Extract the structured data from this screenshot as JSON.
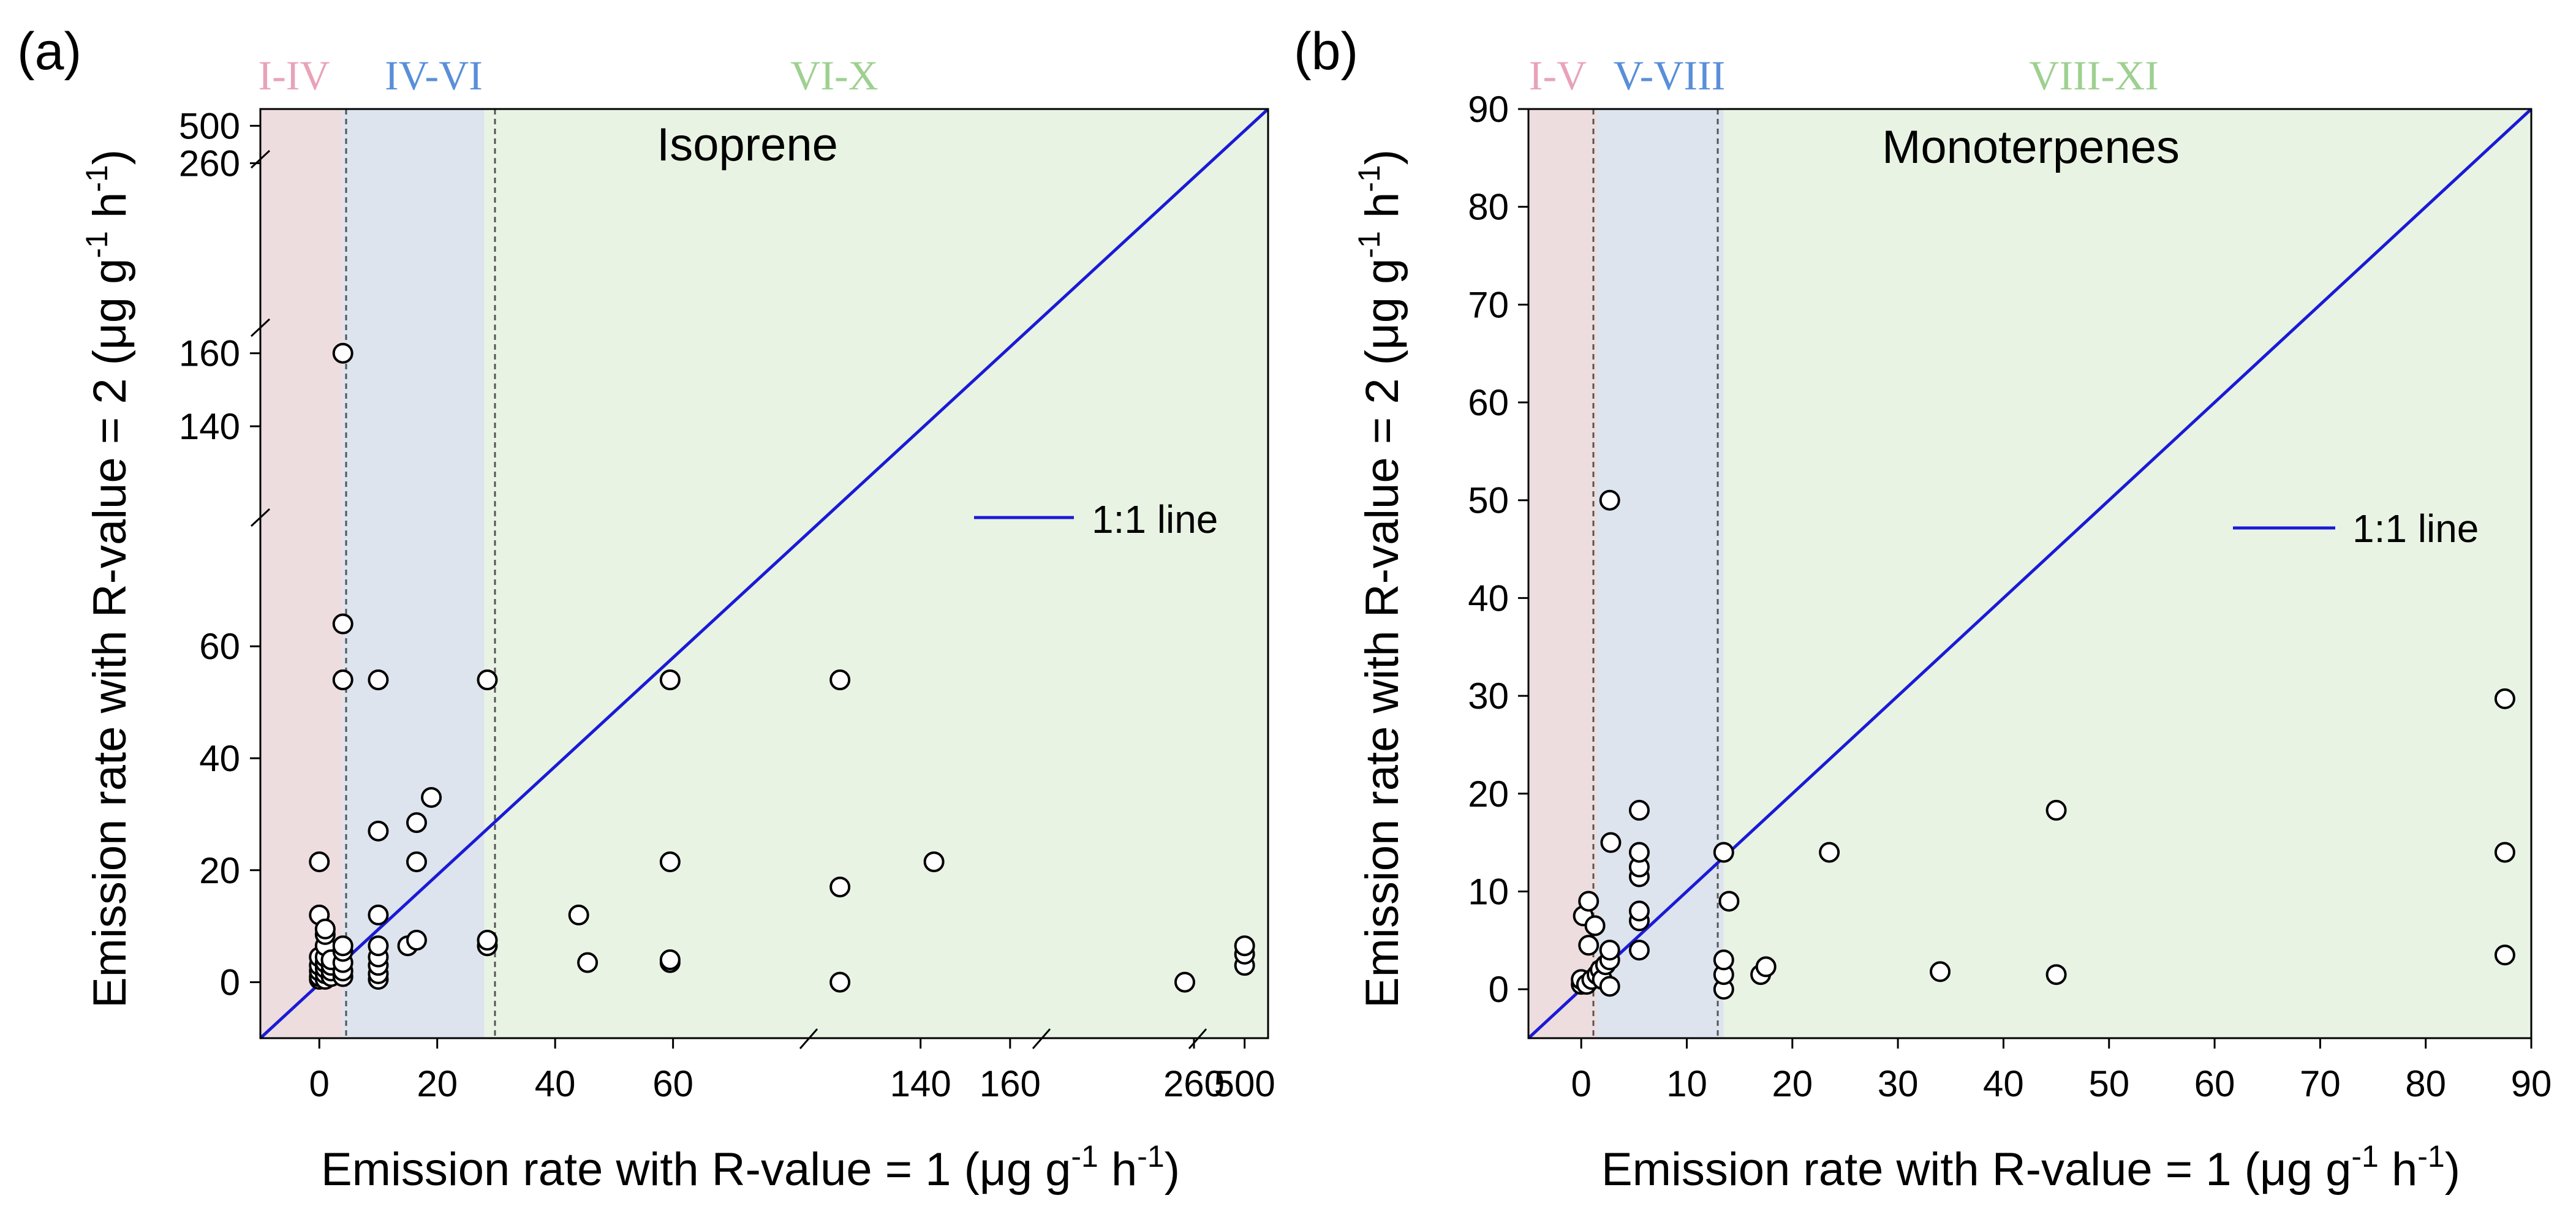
{
  "chart_data": [
    {
      "type": "scatter",
      "panel_label": "(a)",
      "title": "Isoprene",
      "xlabel": "Emission rate with R-value = 1 (μg g-1 h-1)",
      "ylabel": "Emission rate with R-value = 2 (μg g-1 h-1)",
      "axis_scale": "broken axes (segments: -10–83, 115–167, 177–262, 490–505)",
      "x_ticks": [
        "0",
        "20",
        "40",
        "60",
        "140",
        "160",
        "260",
        "500"
      ],
      "y_ticks": [
        "0",
        "20",
        "40",
        "60",
        "140",
        "160",
        "260",
        "500"
      ],
      "regions": [
        {
          "label": "I-IV",
          "from": -10,
          "to": 4,
          "color": "#eedddf",
          "label_color": "#e8a3b8"
        },
        {
          "label": "IV-VI",
          "from": 4,
          "to": 28,
          "color": "#dde4ee",
          "label_color": "#5a8ed8"
        },
        {
          "label": "VI-X",
          "from": 28,
          "to": 505,
          "color": "#e9f3e3",
          "label_color": "#9ed090"
        }
      ],
      "line": {
        "name": "1:1 line",
        "color": "#1a1ad6"
      },
      "points": [
        [
          0,
          0.5
        ],
        [
          0,
          1
        ],
        [
          0,
          2
        ],
        [
          0,
          3
        ],
        [
          0,
          4.5
        ],
        [
          0,
          12
        ],
        [
          0,
          21.5
        ],
        [
          1,
          0.5
        ],
        [
          1,
          1.5
        ],
        [
          1,
          2.5
        ],
        [
          1,
          3.5
        ],
        [
          1,
          4.5
        ],
        [
          1,
          6.5
        ],
        [
          1,
          8.5
        ],
        [
          1,
          9.5
        ],
        [
          2,
          1
        ],
        [
          2,
          2
        ],
        [
          2,
          3
        ],
        [
          2,
          4
        ],
        [
          4,
          1
        ],
        [
          4,
          2
        ],
        [
          4,
          3.5
        ],
        [
          4,
          5.5
        ],
        [
          4,
          6.5
        ],
        [
          4,
          54
        ],
        [
          4,
          64
        ],
        [
          4,
          160
        ],
        [
          10,
          0.5
        ],
        [
          10,
          1.5
        ],
        [
          10,
          3
        ],
        [
          10,
          4.5
        ],
        [
          10,
          6.5
        ],
        [
          10,
          12
        ],
        [
          10,
          27
        ],
        [
          10,
          54
        ],
        [
          15,
          6.5
        ],
        [
          16.5,
          7.5
        ],
        [
          16.5,
          21.5
        ],
        [
          16.5,
          28.5
        ],
        [
          19,
          33
        ],
        [
          28.5,
          6.5
        ],
        [
          28.5,
          7.5
        ],
        [
          28.5,
          54
        ],
        [
          44,
          12
        ],
        [
          45.5,
          3.5
        ],
        [
          59.5,
          3.5
        ],
        [
          59.5,
          4
        ],
        [
          59.5,
          21.5
        ],
        [
          59.5,
          54
        ],
        [
          122,
          0
        ],
        [
          122,
          17
        ],
        [
          122,
          54
        ],
        [
          143,
          21.5
        ],
        [
          255,
          0
        ],
        [
          500,
          3
        ],
        [
          500,
          5
        ],
        [
          500,
          6.5
        ]
      ]
    },
    {
      "type": "scatter",
      "panel_label": "(b)",
      "title": "Monoterpenes",
      "xlabel": "Emission rate with R-value = 1 (μg g-1 h-1)",
      "ylabel": "Emission rate with R-value = 2 (μg g-1 h-1)",
      "xlim": [
        -5,
        90
      ],
      "ylim": [
        -5,
        90
      ],
      "x_ticks": [
        "0",
        "10",
        "20",
        "30",
        "40",
        "50",
        "60",
        "70",
        "80",
        "90"
      ],
      "y_ticks": [
        "0",
        "10",
        "20",
        "30",
        "40",
        "50",
        "60",
        "70",
        "80",
        "90"
      ],
      "regions": [
        {
          "label": "I-V",
          "from": -5,
          "to": 1.5,
          "color": "#eedddf",
          "label_color": "#e8a3b8"
        },
        {
          "label": "V-VIII",
          "from": 1.5,
          "to": 13.5,
          "color": "#dde4ee",
          "label_color": "#5a8ed8"
        },
        {
          "label": "VIII-XI",
          "from": 13.5,
          "to": 90,
          "color": "#e9f3e3",
          "label_color": "#9ed090"
        }
      ],
      "line": {
        "name": "1:1 line",
        "color": "#1a1ad6"
      },
      "points": [
        [
          0,
          0.5
        ],
        [
          0,
          1
        ],
        [
          0.2,
          7.5
        ],
        [
          0.7,
          4.5
        ],
        [
          0.7,
          9
        ],
        [
          1.3,
          6.5
        ],
        [
          0.5,
          0.5
        ],
        [
          1,
          1
        ],
        [
          1.5,
          1.5
        ],
        [
          1.8,
          2
        ],
        [
          2,
          1
        ],
        [
          2.3,
          2.5
        ],
        [
          2.7,
          3
        ],
        [
          2.7,
          4
        ],
        [
          2.7,
          0.3
        ],
        [
          2.8,
          15
        ],
        [
          2.7,
          50
        ],
        [
          5.5,
          4
        ],
        [
          5.5,
          7
        ],
        [
          5.5,
          8
        ],
        [
          5.5,
          11.5
        ],
        [
          5.5,
          12.5
        ],
        [
          5.5,
          14
        ],
        [
          5.5,
          18.3
        ],
        [
          13.5,
          0
        ],
        [
          13.5,
          1.5
        ],
        [
          13.5,
          3
        ],
        [
          13.5,
          14
        ],
        [
          14,
          9
        ],
        [
          17,
          1.5
        ],
        [
          17.5,
          2.3
        ],
        [
          23.5,
          14
        ],
        [
          34,
          1.8
        ],
        [
          45,
          1.5
        ],
        [
          45,
          18.3
        ],
        [
          87.5,
          3.5
        ],
        [
          87.5,
          14
        ],
        [
          87.5,
          29.7
        ]
      ]
    }
  ]
}
